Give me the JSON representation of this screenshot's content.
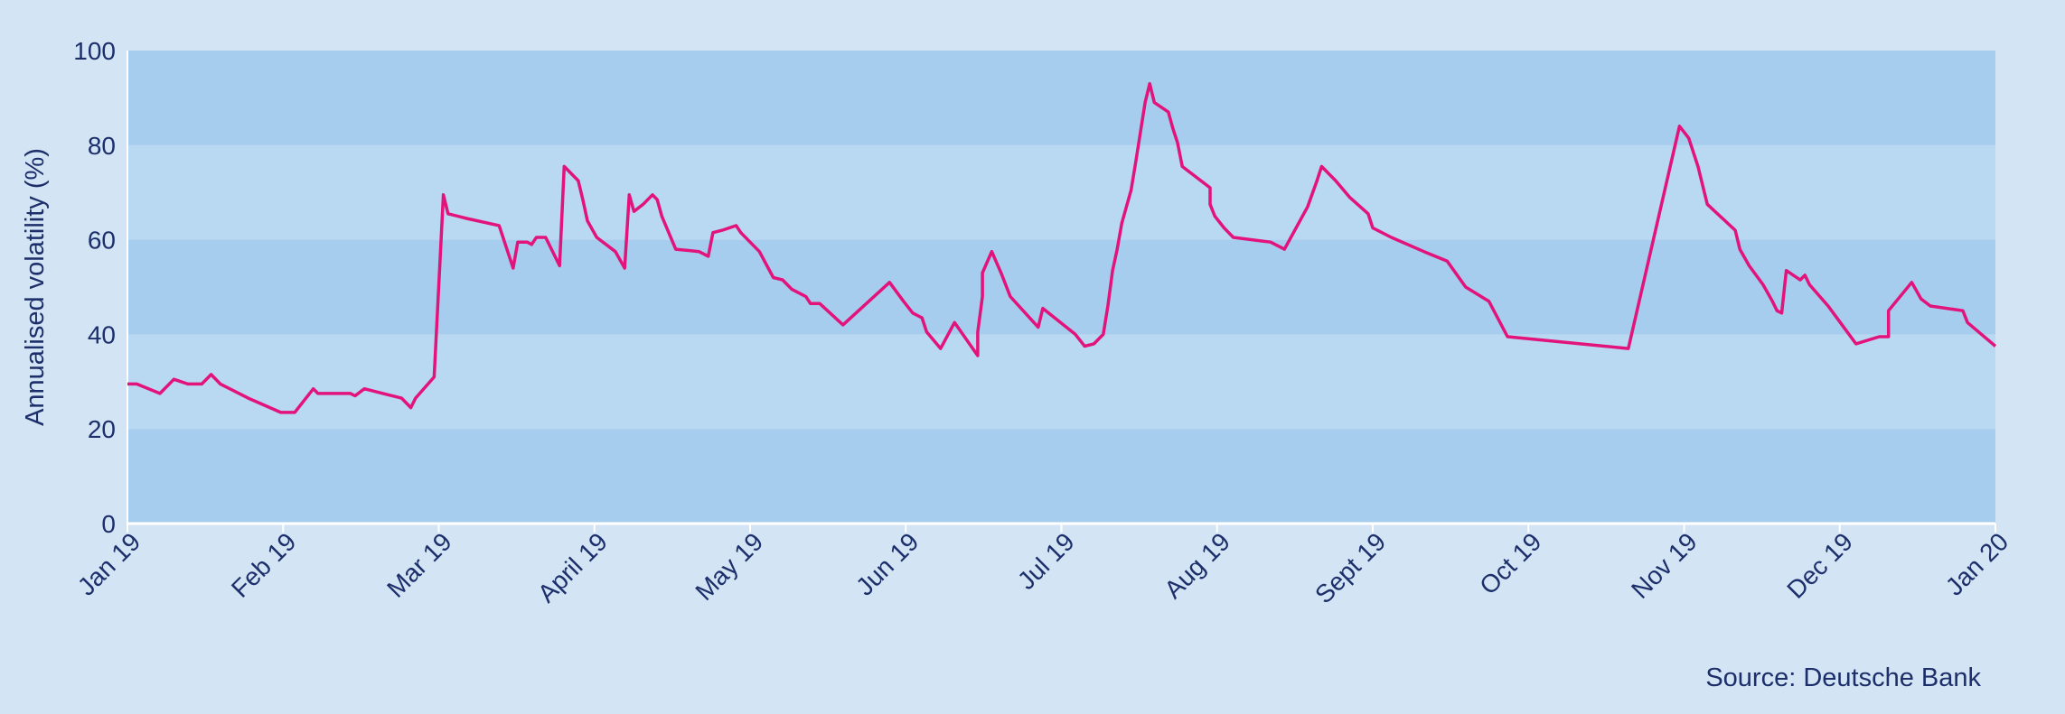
{
  "chart_data": {
    "type": "line",
    "title": "",
    "xlabel": "",
    "ylabel": "Annualised volatility (%)",
    "source": "Source: Deutsche Bank",
    "ylim": [
      0,
      100
    ],
    "yticks": [
      0,
      20,
      40,
      60,
      80,
      100
    ],
    "xticks": [
      "Jan 19",
      "Feb 19",
      "Mar 19",
      "April 19",
      "May 19",
      "Jun 19",
      "Jul 19",
      "Aug 19",
      "Sept 19",
      "Oct 19",
      "Nov 19",
      "Dec 19",
      "Jan 20"
    ],
    "grid": true,
    "colors": {
      "line": "#e2137b",
      "band_dark": "#a7cdee",
      "band_light": "#b9d8f2",
      "background": "#d3e5f5",
      "text": "#1c2f6b"
    },
    "series": [
      {
        "values": [
          [
            "2019-01-01",
            29.5
          ],
          [
            "2019-01-03",
            29.5
          ],
          [
            "2019-01-08",
            27.5
          ],
          [
            "2019-01-11",
            30.5
          ],
          [
            "2019-01-14",
            29.5
          ],
          [
            "2019-01-17",
            29.5
          ],
          [
            "2019-01-19",
            31.5
          ],
          [
            "2019-01-21",
            29.5
          ],
          [
            "2019-01-27",
            26.5
          ],
          [
            "2019-02-03",
            23.5
          ],
          [
            "2019-02-06",
            23.5
          ],
          [
            "2019-02-10",
            28.5
          ],
          [
            "2019-02-11",
            27.5
          ],
          [
            "2019-02-18",
            27.5
          ],
          [
            "2019-02-19",
            27.0
          ],
          [
            "2019-02-21",
            28.5
          ],
          [
            "2019-02-25",
            27.5
          ],
          [
            "2019-03-01",
            26.5
          ],
          [
            "2019-03-03",
            24.5
          ],
          [
            "2019-03-04",
            26.5
          ],
          [
            "2019-03-08",
            31.0
          ],
          [
            "2019-03-10",
            69.5
          ],
          [
            "2019-03-11",
            65.5
          ],
          [
            "2019-03-15",
            64.5
          ],
          [
            "2019-03-22",
            63.0
          ],
          [
            "2019-03-25",
            54.0
          ],
          [
            "2019-03-26",
            59.5
          ],
          [
            "2019-03-28",
            59.5
          ],
          [
            "2019-03-29",
            59.0
          ],
          [
            "2019-03-30",
            60.5
          ],
          [
            "2019-04-01",
            60.5
          ],
          [
            "2019-04-04",
            54.5
          ],
          [
            "2019-04-05",
            75.5
          ],
          [
            "2019-04-08",
            72.5
          ],
          [
            "2019-04-09",
            68.5
          ],
          [
            "2019-04-10",
            64.0
          ],
          [
            "2019-04-12",
            60.5
          ],
          [
            "2019-04-16",
            57.5
          ],
          [
            "2019-04-18",
            54.0
          ],
          [
            "2019-04-19",
            69.5
          ],
          [
            "2019-04-20",
            66.0
          ],
          [
            "2019-04-22",
            67.5
          ],
          [
            "2019-04-24",
            69.5
          ],
          [
            "2019-04-25",
            68.5
          ],
          [
            "2019-04-26",
            65.0
          ],
          [
            "2019-04-29",
            58.0
          ],
          [
            "2019-05-04",
            57.5
          ],
          [
            "2019-05-06",
            56.5
          ],
          [
            "2019-05-07",
            61.5
          ],
          [
            "2019-05-09",
            62.0
          ],
          [
            "2019-05-12",
            63.0
          ],
          [
            "2019-05-13",
            61.5
          ],
          [
            "2019-05-17",
            57.5
          ],
          [
            "2019-05-20",
            52.0
          ],
          [
            "2019-05-22",
            51.5
          ],
          [
            "2019-05-24",
            49.5
          ],
          [
            "2019-05-27",
            48.0
          ],
          [
            "2019-05-28",
            46.5
          ],
          [
            "2019-05-30",
            46.5
          ],
          [
            "2019-06-04",
            42.0
          ],
          [
            "2019-06-14",
            51.0
          ],
          [
            "2019-06-17",
            47.0
          ],
          [
            "2019-06-19",
            44.5
          ],
          [
            "2019-06-21",
            43.5
          ],
          [
            "2019-06-22",
            40.5
          ],
          [
            "2019-06-25",
            37.0
          ],
          [
            "2019-06-28",
            42.5
          ],
          [
            "2019-07-03",
            35.5
          ],
          [
            "2019-07-03",
            40.5
          ],
          [
            "2019-07-04",
            48.0
          ],
          [
            "2019-07-04",
            53.0
          ],
          [
            "2019-07-06",
            57.5
          ],
          [
            "2019-07-08",
            53.0
          ],
          [
            "2019-07-10",
            48.0
          ],
          [
            "2019-07-16",
            41.5
          ],
          [
            "2019-07-17",
            45.5
          ],
          [
            "2019-07-24",
            40.0
          ],
          [
            "2019-07-26",
            37.5
          ],
          [
            "2019-07-28",
            38.0
          ],
          [
            "2019-07-30",
            40.0
          ],
          [
            "2019-07-31",
            46.0
          ],
          [
            "2019-08-01",
            53.5
          ],
          [
            "2019-08-02",
            58.0
          ],
          [
            "2019-08-03",
            63.5
          ],
          [
            "2019-08-05",
            70.5
          ],
          [
            "2019-08-06",
            76.5
          ],
          [
            "2019-08-08",
            89.0
          ],
          [
            "2019-08-09",
            93.0
          ],
          [
            "2019-08-10",
            89.0
          ],
          [
            "2019-08-13",
            87.0
          ],
          [
            "2019-08-14",
            83.5
          ],
          [
            "2019-08-15",
            80.5
          ],
          [
            "2019-08-16",
            75.5
          ],
          [
            "2019-08-22",
            71.0
          ],
          [
            "2019-08-22",
            67.5
          ],
          [
            "2019-08-23",
            65.0
          ],
          [
            "2019-08-25",
            62.5
          ],
          [
            "2019-08-27",
            60.5
          ],
          [
            "2019-09-04",
            59.5
          ],
          [
            "2019-09-07",
            58.0
          ],
          [
            "2019-09-12",
            67.0
          ],
          [
            "2019-09-14",
            72.5
          ],
          [
            "2019-09-15",
            75.5
          ],
          [
            "2019-09-18",
            72.5
          ],
          [
            "2019-09-21",
            69.0
          ],
          [
            "2019-09-25",
            65.5
          ],
          [
            "2019-09-26",
            62.5
          ],
          [
            "2019-09-30",
            60.5
          ],
          [
            "2019-10-07",
            57.5
          ],
          [
            "2019-10-12",
            55.5
          ],
          [
            "2019-10-16",
            50.0
          ],
          [
            "2019-10-21",
            47.0
          ],
          [
            "2019-10-25",
            39.5
          ],
          [
            "2019-11-20",
            37.0
          ],
          [
            "2019-12-01",
            84.0
          ],
          [
            "2019-12-03",
            81.5
          ],
          [
            "2019-12-05",
            75.5
          ],
          [
            "2019-12-07",
            67.5
          ],
          [
            "2019-12-13",
            62.0
          ],
          [
            "2019-12-14",
            58.0
          ],
          [
            "2019-12-16",
            54.5
          ],
          [
            "2019-12-19",
            50.5
          ],
          [
            "2019-12-21",
            47.0
          ],
          [
            "2019-12-22",
            45.0
          ],
          [
            "2019-12-23",
            44.5
          ],
          [
            "2019-12-24",
            53.5
          ],
          [
            "2019-12-27",
            51.5
          ],
          [
            "2019-12-28",
            52.5
          ],
          [
            "2019-12-29",
            50.5
          ],
          [
            "2020-01-02",
            46.0
          ],
          [
            "2020-01-08",
            38.0
          ],
          [
            "2020-01-13",
            39.5
          ],
          [
            "2020-01-15",
            39.5
          ],
          [
            "2020-01-15",
            45.0
          ],
          [
            "2020-01-20",
            51.0
          ],
          [
            "2020-01-22",
            47.5
          ],
          [
            "2020-01-24",
            46.0
          ],
          [
            "2020-01-31",
            45.0
          ],
          [
            "2020-02-01",
            42.5
          ],
          [
            "2020-02-07",
            37.5
          ]
        ]
      }
    ]
  }
}
